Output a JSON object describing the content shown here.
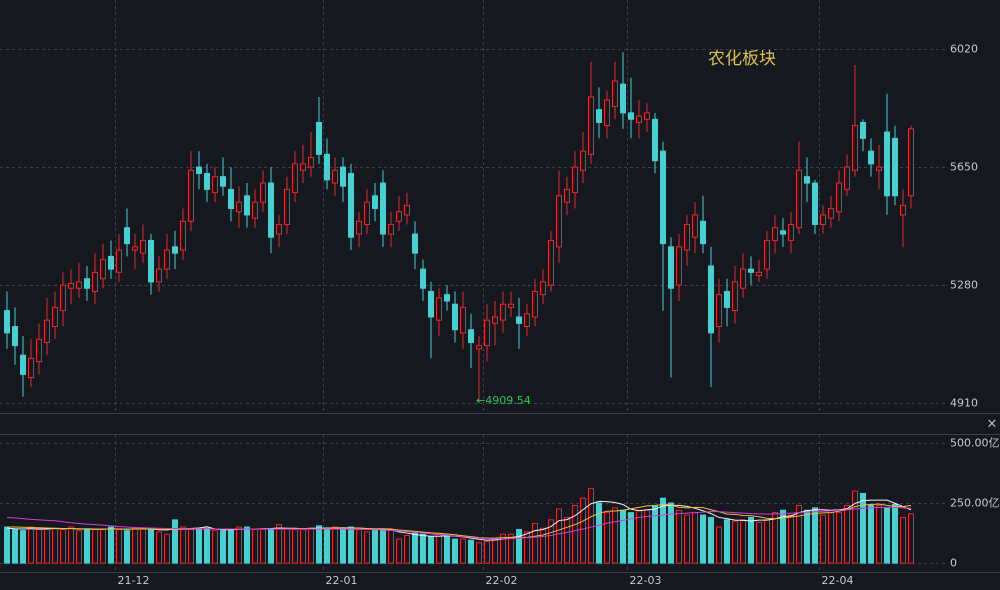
{
  "chart_data": {
    "type": "candlestick",
    "title": "农化板块",
    "low_label": "←4909.54",
    "up_color": "#e8262b",
    "down_color": "#45d0d2",
    "categories": [
      null,
      null,
      null,
      null,
      null,
      null,
      null,
      null,
      null,
      null,
      null,
      null,
      null,
      null,
      "21-12",
      null,
      null,
      null,
      null,
      null,
      null,
      null,
      null,
      null,
      null,
      null,
      null,
      null,
      null,
      null,
      null,
      null,
      null,
      null,
      null,
      null,
      null,
      null,
      null,
      null,
      "22-01",
      null,
      null,
      null,
      null,
      null,
      null,
      null,
      null,
      null,
      null,
      null,
      null,
      null,
      null,
      null,
      null,
      null,
      null,
      null,
      "22-02",
      null,
      null,
      null,
      null,
      null,
      null,
      null,
      null,
      null,
      null,
      null,
      null,
      null,
      null,
      null,
      null,
      null,
      "22-03",
      null,
      null,
      null,
      null,
      null,
      null,
      null,
      null,
      null,
      null,
      null,
      null,
      null,
      null,
      null,
      null,
      null,
      null,
      null,
      null,
      null,
      null,
      null,
      "22-04",
      null,
      null,
      null,
      null,
      null,
      null,
      null,
      null,
      null,
      null,
      null
    ],
    "open": [
      5200,
      5150,
      5060,
      4990,
      5040,
      5100,
      5150,
      5200,
      5270,
      5270,
      5300,
      5260,
      5300,
      5370,
      5320,
      5460,
      5390,
      5380,
      5420,
      5290,
      5330,
      5400,
      5390,
      5480,
      5650,
      5630,
      5570,
      5620,
      5580,
      5510,
      5560,
      5490,
      5540,
      5600,
      5440,
      5470,
      5570,
      5640,
      5650,
      5790,
      5690,
      5600,
      5650,
      5630,
      5440,
      5470,
      5560,
      5600,
      5440,
      5480,
      5500,
      5440,
      5330,
      5260,
      5170,
      5250,
      5220,
      5130,
      5140,
      5080,
      5090,
      5160,
      5170,
      5210,
      5180,
      5150,
      5180,
      5250,
      5280,
      5400,
      5540,
      5570,
      5640,
      5690,
      5830,
      5780,
      5840,
      5910,
      5820,
      5790,
      5800,
      5800,
      5700,
      5400,
      5280,
      5390,
      5430,
      5480,
      5340,
      5150,
      5260,
      5200,
      5270,
      5330,
      5310,
      5330,
      5420,
      5450,
      5420,
      5460,
      5620,
      5600,
      5470,
      5490,
      5510,
      5580,
      5640,
      5790,
      5700,
      5640,
      5760,
      5740,
      5500,
      5560
    ],
    "high": [
      5260,
      5210,
      5120,
      5110,
      5160,
      5240,
      5260,
      5320,
      5330,
      5350,
      5340,
      5380,
      5410,
      5420,
      5440,
      5520,
      5440,
      5470,
      5440,
      5370,
      5440,
      5450,
      5520,
      5700,
      5700,
      5660,
      5650,
      5680,
      5650,
      5590,
      5600,
      5580,
      5640,
      5650,
      5500,
      5620,
      5700,
      5720,
      5760,
      5870,
      5740,
      5680,
      5680,
      5660,
      5510,
      5580,
      5600,
      5640,
      5510,
      5560,
      5570,
      5480,
      5360,
      5290,
      5270,
      5280,
      5260,
      5260,
      5190,
      5120,
      5220,
      5230,
      5260,
      5260,
      5240,
      5220,
      5300,
      5330,
      5450,
      5640,
      5620,
      5700,
      5760,
      5980,
      5900,
      5890,
      5980,
      6010,
      5930,
      5860,
      5850,
      5820,
      5730,
      5430,
      5440,
      5500,
      5540,
      5560,
      5400,
      5300,
      5300,
      5340,
      5380,
      5370,
      5360,
      5450,
      5500,
      5490,
      5510,
      5730,
      5680,
      5610,
      5530,
      5560,
      5640,
      5690,
      5970,
      5800,
      5740,
      5720,
      5880,
      5780,
      5580,
      5780
    ],
    "low": [
      5080,
      5030,
      4930,
      4960,
      5000,
      5060,
      5110,
      5150,
      5220,
      5240,
      5230,
      5220,
      5270,
      5300,
      5290,
      5370,
      5330,
      5350,
      5250,
      5260,
      5300,
      5330,
      5360,
      5450,
      5580,
      5540,
      5540,
      5560,
      5480,
      5460,
      5460,
      5460,
      5510,
      5380,
      5400,
      5440,
      5540,
      5600,
      5620,
      5660,
      5580,
      5560,
      5540,
      5390,
      5400,
      5440,
      5480,
      5400,
      5400,
      5450,
      5470,
      5330,
      5230,
      5050,
      5120,
      5200,
      5100,
      5080,
      5020,
      4909.54,
      5040,
      5090,
      5130,
      5180,
      5080,
      5120,
      5150,
      5220,
      5260,
      5350,
      5500,
      5520,
      5600,
      5660,
      5740,
      5740,
      5800,
      5770,
      5740,
      5740,
      5760,
      5630,
      5200,
      4990,
      5230,
      5340,
      5380,
      5380,
      4960,
      5100,
      5150,
      5160,
      5240,
      5280,
      5290,
      5300,
      5380,
      5400,
      5380,
      5440,
      5540,
      5440,
      5440,
      5460,
      5480,
      5560,
      5620,
      5700,
      5620,
      5580,
      5500,
      5530,
      5400,
      5520
    ],
    "close": [
      5130,
      5090,
      5000,
      5050,
      5110,
      5170,
      5210,
      5280,
      5285,
      5290,
      5270,
      5320,
      5360,
      5330,
      5390,
      5410,
      5400,
      5420,
      5290,
      5330,
      5390,
      5380,
      5480,
      5640,
      5630,
      5580,
      5620,
      5590,
      5520,
      5540,
      5500,
      5540,
      5600,
      5430,
      5470,
      5580,
      5660,
      5660,
      5680,
      5690,
      5610,
      5640,
      5590,
      5430,
      5480,
      5540,
      5520,
      5440,
      5470,
      5510,
      5530,
      5380,
      5270,
      5180,
      5240,
      5230,
      5140,
      5210,
      5100,
      5090,
      5170,
      5180,
      5220,
      5220,
      5160,
      5190,
      5260,
      5290,
      5420,
      5560,
      5580,
      5650,
      5700,
      5870,
      5790,
      5860,
      5920,
      5820,
      5800,
      5810,
      5820,
      5670,
      5410,
      5270,
      5400,
      5470,
      5500,
      5410,
      5130,
      5250,
      5210,
      5290,
      5330,
      5320,
      5320,
      5420,
      5460,
      5440,
      5470,
      5640,
      5600,
      5470,
      5500,
      5520,
      5600,
      5650,
      5780,
      5740,
      5660,
      5650,
      5560,
      5560,
      5530,
      5770
    ],
    "ylim": [
      4882,
      6174
    ],
    "yticks": [
      4910,
      5280,
      5650,
      6020
    ],
    "volume": {
      "values": [
        150,
        140,
        135,
        150,
        140,
        145,
        145,
        140,
        150,
        135,
        140,
        140,
        140,
        150,
        140,
        135,
        145,
        145,
        140,
        130,
        120,
        180,
        150,
        140,
        140,
        145,
        135,
        135,
        140,
        150,
        150,
        140,
        140,
        140,
        160,
        145,
        140,
        140,
        145,
        155,
        140,
        150,
        145,
        150,
        140,
        130,
        140,
        140,
        140,
        100,
        115,
        125,
        120,
        110,
        120,
        115,
        100,
        100,
        95,
        85,
        90,
        100,
        120,
        120,
        140,
        130,
        165,
        145,
        180,
        225,
        190,
        240,
        270,
        310,
        250,
        210,
        230,
        220,
        210,
        220,
        220,
        240,
        270,
        250,
        220,
        200,
        210,
        200,
        190,
        150,
        180,
        175,
        180,
        190,
        170,
        180,
        210,
        220,
        200,
        240,
        220,
        230,
        200,
        210,
        210,
        240,
        300,
        290,
        240,
        240,
        230,
        245,
        190,
        205
      ],
      "ylim": [
        -37,
        533
      ],
      "yticks": [
        0,
        {
          "value": 250,
          "label": "250.00亿"
        },
        {
          "value": 500,
          "label": "500.00亿"
        }
      ],
      "ma_lines": [
        {
          "color": "#f2f2f2",
          "values": [
            145,
            143,
            142,
            143,
            142,
            142,
            144,
            143,
            144,
            142,
            142,
            141,
            141,
            143,
            142,
            141,
            142,
            143,
            142,
            139,
            138,
            143,
            143,
            144,
            146,
            151,
            142,
            139,
            139,
            141,
            142,
            142,
            143,
            144,
            146,
            145,
            145,
            143,
            145,
            145,
            146,
            146,
            147,
            146,
            146,
            143,
            141,
            140,
            138,
            130,
            125,
            119,
            115,
            112,
            112,
            114,
            112,
            109,
            104,
            99,
            95,
            96,
            100,
            106,
            111,
            122,
            135,
            140,
            152,
            177,
            181,
            197,
            222,
            247,
            257,
            256,
            252,
            244,
            224,
            218,
            222,
            224,
            238,
            240,
            240,
            236,
            228,
            218,
            206,
            190,
            185,
            179,
            178,
            175,
            179,
            179,
            184,
            194,
            196,
            210,
            218,
            222,
            222,
            220,
            222,
            226,
            248,
            260,
            262,
            262,
            262,
            249,
            235,
            222
          ]
        },
        {
          "color": "#e8c23a",
          "values": [
            150,
            150,
            149,
            148,
            147,
            146,
            145,
            144,
            144,
            143,
            143,
            142,
            142,
            142,
            142,
            142,
            142,
            142,
            142,
            141,
            140,
            141,
            141,
            142,
            142,
            143,
            142,
            141,
            141,
            141,
            142,
            142,
            142,
            142,
            143,
            143,
            143,
            143,
            143,
            143,
            144,
            145,
            145,
            145,
            146,
            144,
            143,
            143,
            142,
            138,
            135,
            132,
            129,
            126,
            124,
            121,
            118,
            114,
            110,
            106,
            104,
            104,
            106,
            107,
            107,
            107,
            112,
            117,
            127,
            138,
            149,
            160,
            175,
            193,
            207,
            216,
            217,
            220,
            226,
            232,
            238,
            239,
            245,
            242,
            232,
            230,
            232,
            231,
            222,
            214,
            204,
            203,
            198,
            197,
            193,
            186,
            185,
            187,
            192,
            196,
            202,
            207,
            209,
            210,
            216,
            222,
            235,
            242,
            244,
            246,
            240,
            236,
            235,
            240
          ]
        },
        {
          "color": "#d63ad6",
          "values": [
            190,
            188,
            185,
            182,
            180,
            178,
            176,
            172,
            168,
            165,
            162,
            160,
            158,
            155,
            152,
            150,
            148,
            147,
            146,
            145,
            144,
            144,
            143,
            143,
            143,
            143,
            142,
            142,
            142,
            142,
            142,
            142,
            142,
            142,
            142,
            142,
            142,
            142,
            142,
            142,
            142,
            142,
            142,
            142,
            141,
            140,
            139,
            138,
            136,
            134,
            131,
            128,
            125,
            122,
            119,
            116,
            113,
            110,
            107,
            104,
            102,
            101,
            101,
            102,
            104,
            106,
            108,
            111,
            115,
            122,
            128,
            135,
            142,
            150,
            158,
            166,
            172,
            178,
            184,
            190,
            194,
            197,
            200,
            204,
            206,
            208,
            210,
            212,
            214,
            214,
            212,
            210,
            208,
            206,
            205,
            204,
            205,
            206,
            208,
            210,
            212,
            214,
            216,
            218,
            220,
            222,
            225,
            228,
            230,
            232,
            232,
            232,
            230,
            228
          ]
        }
      ]
    }
  }
}
